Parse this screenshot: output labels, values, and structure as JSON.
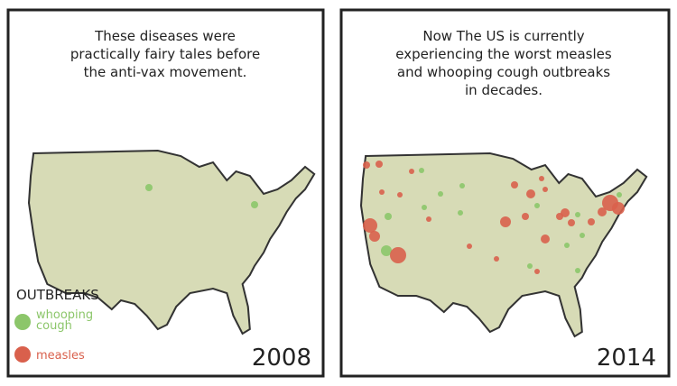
{
  "panels": [
    {
      "caption": [
        "These diseases were",
        "practically fairy tales before",
        "the anti-vax movement."
      ],
      "year": "2008"
    },
    {
      "caption": [
        "Now The US is currently",
        "experiencing the worst measles",
        "and whooping cough outbreaks",
        "in decades."
      ],
      "year": "2014"
    }
  ],
  "legend": {
    "title": "OUTBREAKS",
    "items": [
      {
        "label": [
          "whooping",
          "cough"
        ],
        "color": "#8cc66a"
      },
      {
        "label": [
          "measles"
        ],
        "color": "#d9604c"
      }
    ]
  }
}
